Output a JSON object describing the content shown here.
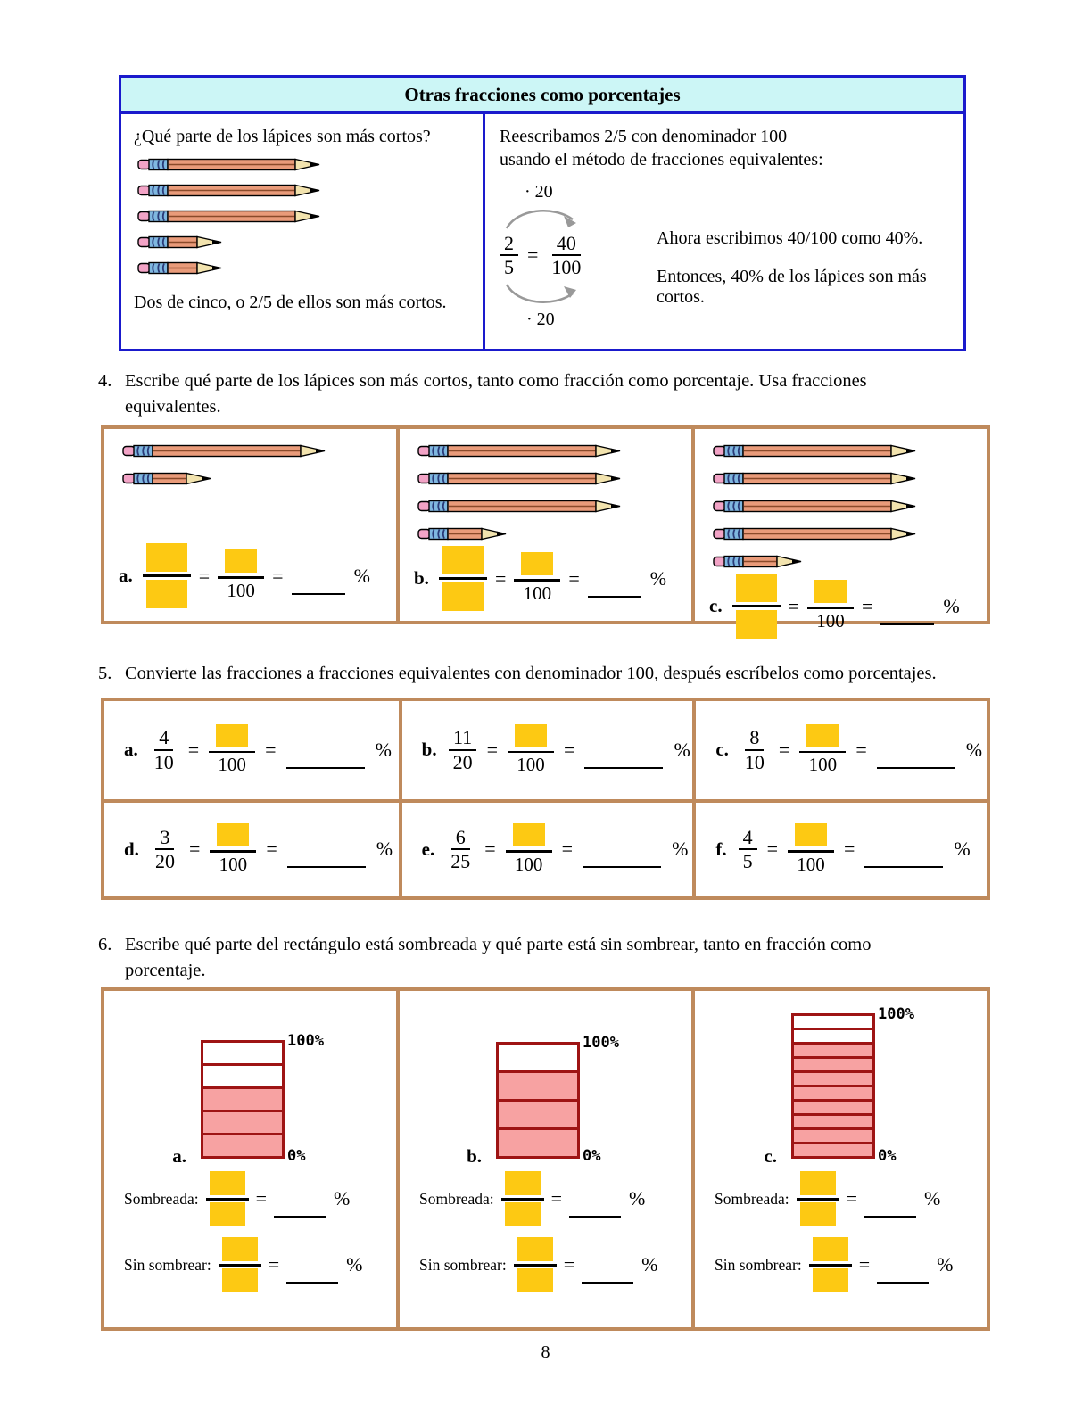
{
  "page": {
    "number": "8"
  },
  "symbols": {
    "equals": "=",
    "percent": "%",
    "hundred": "100"
  },
  "colors": {
    "box_border_blue": "#1a1acc",
    "header_cyan": "#ccf6f6",
    "table_border_tan": "#bf8a5c",
    "answer_box_yellow": "#fdc913",
    "pencil_body": "#e99b7a",
    "pencil_eraser": "#f2a3c6",
    "pencil_ferrule": "#7fb7e0",
    "pencil_tip": "#f2e3ae",
    "shaded_row_pink": "#f7a2a2",
    "rect_border_red": "#9e1414",
    "arrow_gray": "#999999"
  },
  "info_box": {
    "title": "Otras fracciones como porcentajes",
    "left": {
      "question": "¿Qué parte de los lápices son más cortos?",
      "pencils": [
        "long",
        "long",
        "long",
        "short",
        "short"
      ],
      "conclusion": "Dos de cinco, o 2/5 de ellos son más cortos."
    },
    "right": {
      "intro_line1": "Reescribamos 2/5 con denominador 100",
      "intro_line2": "usando el método de fracciones equivalentes:",
      "multiplier_top": "· 20",
      "multiplier_bottom": "· 20",
      "fraction_left": {
        "num": "2",
        "den": "5"
      },
      "fraction_right": {
        "num": "40",
        "den": "100"
      },
      "note1": "Ahora escribimos 40/100 como 40%.",
      "note2": "Entonces, 40% de los lápices son más cortos."
    }
  },
  "q4": {
    "number": "4.",
    "text_line1": "Escribe qué parte de los lápices son más cortos, tanto como fracción como porcentaje. Usa fracciones",
    "text_line2": "equivalentes.",
    "items": [
      {
        "label": "a.",
        "pencils": [
          "long",
          "short"
        ]
      },
      {
        "label": "b.",
        "pencils": [
          "long",
          "long",
          "long",
          "short"
        ]
      },
      {
        "label": "c.",
        "pencils": [
          "long",
          "long",
          "long",
          "long",
          "short"
        ]
      }
    ]
  },
  "q5": {
    "number": "5.",
    "text": "Convierte las fracciones a fracciones equivalentes con denominador 100, después escríbelos como porcentajes.",
    "items": [
      {
        "label": "a.",
        "num": "4",
        "den": "10"
      },
      {
        "label": "b.",
        "num": "11",
        "den": "20"
      },
      {
        "label": "c.",
        "num": "8",
        "den": "10"
      },
      {
        "label": "d.",
        "num": "3",
        "den": "20"
      },
      {
        "label": "e.",
        "num": "6",
        "den": "25"
      },
      {
        "label": "f.",
        "num": "4",
        "den": "5"
      }
    ]
  },
  "q6": {
    "number": "6.",
    "text_line1": "Escribe qué parte del rectángulo está sombreada y qué parte está sin sombrear, tanto en fracción como",
    "text_line2": "porcentaje.",
    "top_label": "100%",
    "bottom_label": "0%",
    "shaded_label": "Sombreada:",
    "unshaded_label": "Sin sombrear:",
    "items": [
      {
        "label": "a.",
        "rows": 5,
        "shaded": 3
      },
      {
        "label": "b.",
        "rows": 4,
        "shaded": 3
      },
      {
        "label": "c.",
        "rows": 10,
        "shaded": 8
      }
    ]
  }
}
